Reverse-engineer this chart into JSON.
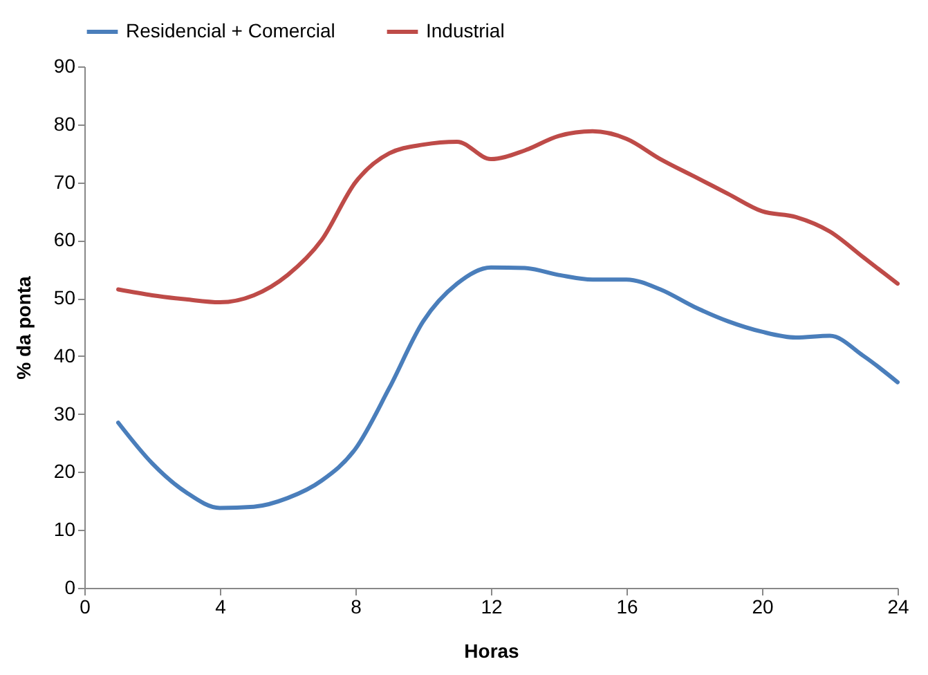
{
  "chart_data": {
    "type": "line",
    "xlabel": "Horas",
    "ylabel": "% da ponta",
    "x": [
      1,
      2,
      3,
      4,
      5,
      6,
      7,
      8,
      9,
      10,
      11,
      12,
      13,
      14,
      15,
      16,
      17,
      18,
      19,
      20,
      21,
      22,
      23,
      24
    ],
    "series": [
      {
        "name": "Residencial + Comercial",
        "color": "#4a7ebb",
        "values": [
          28.5,
          21.5,
          16.5,
          13.8,
          14,
          15.5,
          18.5,
          24,
          34.5,
          46,
          52.5,
          55.3,
          55.2,
          54,
          53.2,
          53.2,
          51.5,
          48.5,
          46,
          44.2,
          43.2,
          43.5,
          40,
          35.5
        ]
      },
      {
        "name": "Industrial",
        "color": "#be4b48",
        "values": [
          51.5,
          50.5,
          49.8,
          49.3,
          50.5,
          54,
          60,
          70,
          75,
          76.5,
          77,
          74,
          75.5,
          78,
          78.8,
          77.5,
          74,
          71,
          68,
          65,
          64,
          61.5,
          57,
          52.5
        ]
      }
    ],
    "xlim": [
      0,
      24
    ],
    "xticks": [
      0,
      4,
      8,
      12,
      16,
      20,
      24
    ],
    "ylim": [
      0,
      90
    ],
    "yticks": [
      0,
      10,
      20,
      30,
      40,
      50,
      60,
      70,
      80,
      90
    ],
    "grid": false,
    "legend": "top",
    "marker": "none",
    "line_style": "solid"
  }
}
